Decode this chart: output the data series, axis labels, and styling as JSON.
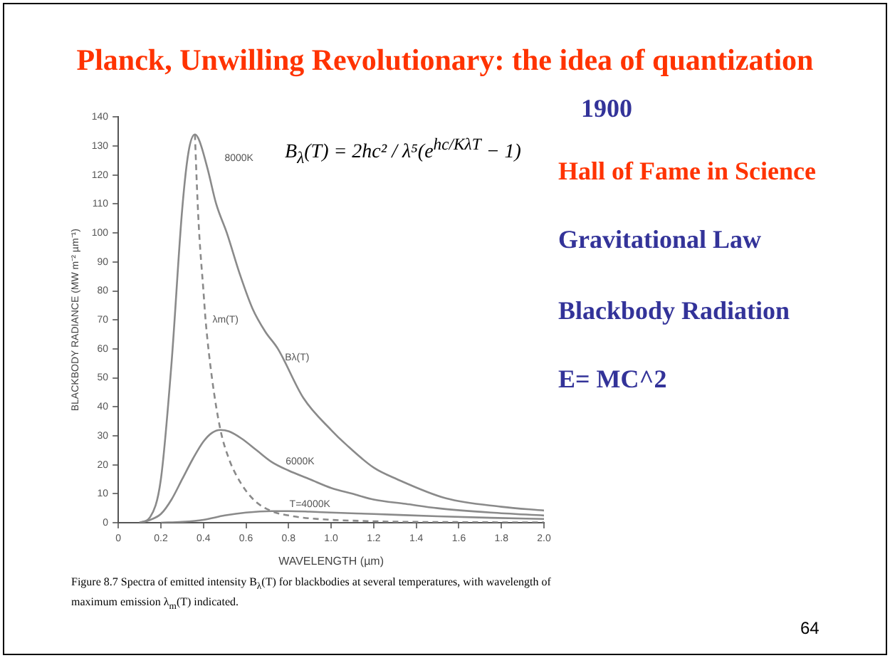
{
  "chart_data": {
    "type": "line",
    "title": "Planck, Unwilling Revolutionary: the idea of quantization",
    "xlabel": "WAVELENGTH (µm)",
    "ylabel": "BLACKBODY RADIANCE (MW m⁻² µm⁻¹)",
    "series": [
      {
        "name": "8000K",
        "color": "#8a8a8a",
        "x": [
          0.1,
          0.15,
          0.2,
          0.25,
          0.3,
          0.33,
          0.36,
          0.38,
          0.42,
          0.46,
          0.51,
          0.57,
          0.63,
          0.69,
          0.75,
          0.87,
          1.0,
          1.07,
          1.2,
          1.31,
          1.54,
          1.8,
          2.0
        ],
        "values": [
          0,
          2,
          15,
          55,
          108,
          128,
          134,
          132,
          122,
          110,
          100,
          86,
          74,
          66,
          60,
          43,
          32,
          27,
          19,
          15,
          8.4,
          5.5,
          4.2
        ]
      },
      {
        "name": "6000K",
        "color": "#8a8a8a",
        "x": [
          0.1,
          0.15,
          0.2,
          0.25,
          0.3,
          0.35,
          0.4,
          0.44,
          0.48,
          0.52,
          0.58,
          0.65,
          0.72,
          0.8,
          0.9,
          1.0,
          1.1,
          1.2,
          1.35,
          1.5,
          1.75,
          2.0
        ],
        "values": [
          0,
          1,
          3,
          8,
          15,
          22,
          28,
          31,
          32,
          31.5,
          29,
          25,
          21,
          18,
          15,
          12,
          10,
          8,
          6.5,
          5,
          3.5,
          2.5
        ]
      },
      {
        "name": "T=4000K",
        "color": "#8a8a8a",
        "x": [
          0.2,
          0.3,
          0.4,
          0.5,
          0.6,
          0.72,
          0.8,
          0.9,
          1.0,
          1.2,
          1.5,
          1.75,
          2.0
        ],
        "values": [
          0,
          0.3,
          1,
          2.5,
          3.5,
          4,
          4,
          3.8,
          3.5,
          3,
          2.2,
          1.7,
          1.3
        ]
      },
      {
        "name": "λm(T)",
        "color": "#8a8a8a",
        "line_style": "dashed",
        "x": [
          0.36,
          0.37,
          0.38,
          0.4,
          0.41,
          0.44,
          0.48,
          0.52,
          0.55,
          0.6,
          0.65,
          0.72,
          0.8,
          0.9,
          1.2,
          1.6,
          2.0
        ],
        "values": [
          134,
          115,
          100,
          80,
          70,
          50,
          32,
          22,
          17,
          11,
          7,
          4,
          2.5,
          1.5,
          0.5,
          0.2,
          0.1
        ]
      }
    ],
    "xlim": [
      0,
      2
    ],
    "xticks": [
      0,
      0.2,
      0.4,
      0.6,
      0.8,
      {
        "value": 1,
        "label": "1.0"
      },
      1.2,
      1.4,
      1.6,
      1.8,
      {
        "value": 2,
        "label": "2.0"
      }
    ],
    "ylim": [
      0,
      140
    ],
    "yticks": [
      0,
      10,
      20,
      30,
      40,
      50,
      60,
      70,
      80,
      90,
      100,
      110,
      120,
      130,
      140
    ],
    "grid": false,
    "legend": false,
    "marker": "none",
    "line_style": "solid",
    "annotations": [
      "1900",
      "Hall of Fame in Science",
      "Gravitational Law",
      "Blackbody Radiation",
      "E= MC^2",
      "B$_{λ}$(T) = 2hc² / λ⁵(e$^{hc/KλT}$ − 1)",
      "Figure 8.7 Spectra of emitted intensity B$_{λ}$(T) for blackbodies at several temperatures, with wavelength of maximum emission λ$_{m}$(T) indicated.",
      "64",
      "Bλ(T)"
    ]
  }
}
